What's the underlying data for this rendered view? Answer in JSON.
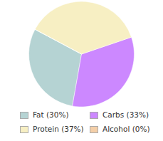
{
  "chart_data": {
    "type": "pie",
    "categories": [
      "Fat (30%)",
      "Carbs (33%)",
      "Protein (37%)",
      "Alcohol (0%)"
    ],
    "values": [
      30,
      33,
      37,
      0
    ],
    "colors": [
      "#b5d3d3",
      "#cc88ff",
      "#f7efc3",
      "#f4cfa8"
    ],
    "legend": "bottom"
  }
}
